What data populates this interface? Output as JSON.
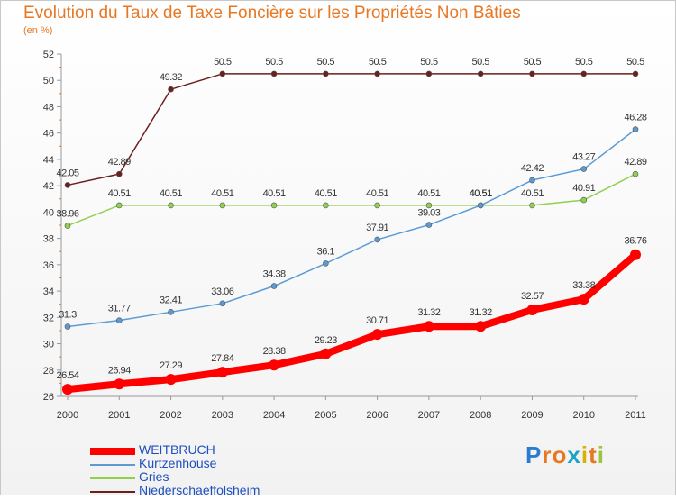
{
  "chart_data": {
    "type": "line",
    "title": "Evolution du Taux de Taxe Foncière sur les Propriétés Non Bâties",
    "ylabel": "(en %)",
    "xlabel": "",
    "x": [
      "2000",
      "2001",
      "2002",
      "2003",
      "2004",
      "2005",
      "2006",
      "2007",
      "2008",
      "2009",
      "2010",
      "2011"
    ],
    "ylim": [
      26,
      52
    ],
    "yticks": [
      26,
      28,
      30,
      32,
      34,
      36,
      38,
      40,
      42,
      44,
      46,
      48,
      50,
      52
    ],
    "grid": false,
    "series": [
      {
        "name": "Niederschaeffolsheim",
        "color": "#6b1f1f",
        "values": [
          42.05,
          42.89,
          49.32,
          50.5,
          50.5,
          50.5,
          50.5,
          50.5,
          50.5,
          50.5,
          50.5,
          50.5
        ],
        "labels": [
          "42.05",
          "42.89",
          "49.32",
          "50.5",
          "50.5",
          "50.5",
          "50.5",
          "50.5",
          "50.5",
          "50.5",
          "50.5",
          "50.5"
        ]
      },
      {
        "name": "Gries",
        "color": "#8fd14f",
        "values": [
          38.96,
          40.51,
          40.51,
          40.51,
          40.51,
          40.51,
          40.51,
          40.51,
          40.51,
          40.51,
          40.91,
          42.89
        ],
        "labels": [
          "38.96",
          "40.51",
          "40.51",
          "40.51",
          "40.51",
          "40.51",
          "40.51",
          "40.51",
          "40.51",
          "40.51",
          "40.91",
          "42.89"
        ]
      },
      {
        "name": "Kurtzenhouse",
        "color": "#5b9bd5",
        "values": [
          31.3,
          31.77,
          32.41,
          33.06,
          34.38,
          36.1,
          37.91,
          39.03,
          40.51,
          42.42,
          43.27,
          46.28
        ],
        "labels": [
          "31.3",
          "31.77",
          "32.41",
          "33.06",
          "34.38",
          "36.1",
          "37.91",
          "39.03",
          "40.51",
          "42.42",
          "43.27",
          "46.28"
        ]
      },
      {
        "name": "WEITBRUCH",
        "color": "#ff0000",
        "values": [
          26.54,
          26.94,
          27.29,
          27.84,
          28.38,
          29.23,
          30.71,
          31.32,
          31.32,
          32.57,
          33.38,
          36.76
        ],
        "labels": [
          "26.54",
          "26.94",
          "27.29",
          "27.84",
          "28.38",
          "29.23",
          "30.71",
          "31.32",
          "31.32",
          "32.57",
          "33.38",
          "36.76"
        ]
      }
    ],
    "legend": [
      {
        "name": "WEITBRUCH",
        "color": "#ff0000"
      },
      {
        "name": "Kurtzenhouse",
        "color": "#5b9bd5"
      },
      {
        "name": "Gries",
        "color": "#8fd14f"
      },
      {
        "name": "Niederschaeffolsheim",
        "color": "#6b1f1f"
      }
    ]
  },
  "logo": {
    "letters": [
      "P",
      "r",
      "o",
      "x",
      "i",
      "t",
      "i"
    ],
    "colors": [
      "#2b7bd1",
      "#e87722",
      "#e87722",
      "#1aa3c9",
      "#d9b100",
      "#e87722",
      "#9bc53d"
    ]
  }
}
